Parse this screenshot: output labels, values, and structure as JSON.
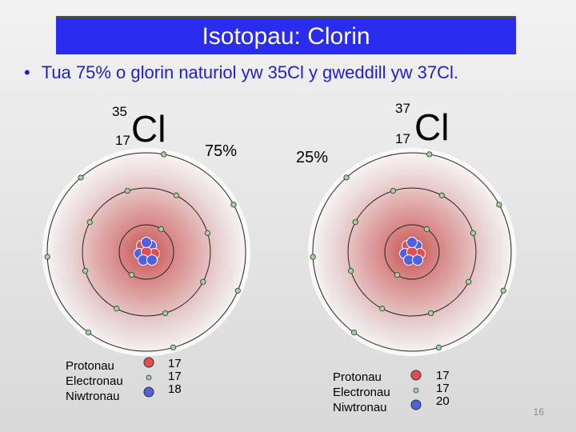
{
  "slide": {
    "title": "Isotopau: Clorin",
    "bullet": "Tua 75% o glorin naturiol yw 35Cl y gweddill yw 37Cl.",
    "page_number": "16"
  },
  "isotopes": [
    {
      "mass_number": "35",
      "atomic_number": "17",
      "symbol": "Cl",
      "abundance": "75%",
      "legend": [
        "Protonau",
        "Electronau",
        "Niwtronau"
      ],
      "counts": [
        "17",
        "17",
        "18"
      ]
    },
    {
      "mass_number": "37",
      "atomic_number": "17",
      "symbol": "Cl",
      "abundance": "25%",
      "legend": [
        "Protonau",
        "Electronau",
        "Niwtronau"
      ],
      "counts": [
        "17",
        "17",
        "20"
      ]
    }
  ],
  "colors": {
    "title_bg": "#2a2df0",
    "bullet_text": "#1f1fcf",
    "proton": "#e05050",
    "neutron": "#5060e0",
    "electron": "#9fd49f"
  },
  "electron_shells": [
    2,
    8,
    7
  ]
}
